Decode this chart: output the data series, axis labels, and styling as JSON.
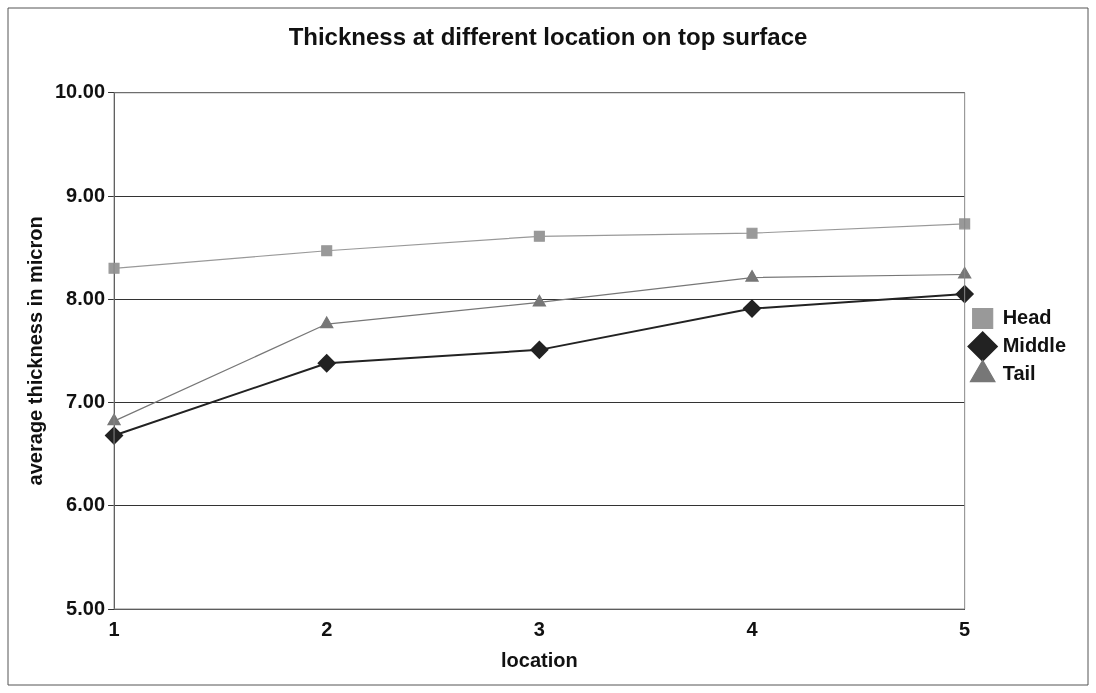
{
  "chart_data": {
    "type": "line",
    "title": "Thickness at different location on top surface",
    "xlabel": "location",
    "ylabel": "average thickness in micron",
    "categories": [
      "1",
      "2",
      "3",
      "4",
      "5"
    ],
    "series": [
      {
        "name": "Head",
        "color": "#999999",
        "marker": "square",
        "values": [
          8.3,
          8.47,
          8.61,
          8.64,
          8.73
        ]
      },
      {
        "name": "Middle",
        "color": "#222222",
        "marker": "diamond",
        "values": [
          6.68,
          7.38,
          7.51,
          7.91,
          8.05
        ]
      },
      {
        "name": "Tail",
        "color": "#777777",
        "marker": "triangle",
        "values": [
          6.82,
          7.76,
          7.97,
          8.21,
          8.24
        ]
      }
    ],
    "ylim": [
      5,
      10
    ],
    "yticks": [
      {
        "value": 5,
        "label": "5.00"
      },
      {
        "value": 6,
        "label": "6.00"
      },
      {
        "value": 7,
        "label": "7.00"
      },
      {
        "value": 8,
        "label": "8.00"
      },
      {
        "value": 9,
        "label": "9.00"
      },
      {
        "value": 10,
        "label": "10.00"
      }
    ],
    "grid": "y",
    "legend": "right",
    "line_style": "solid"
  }
}
